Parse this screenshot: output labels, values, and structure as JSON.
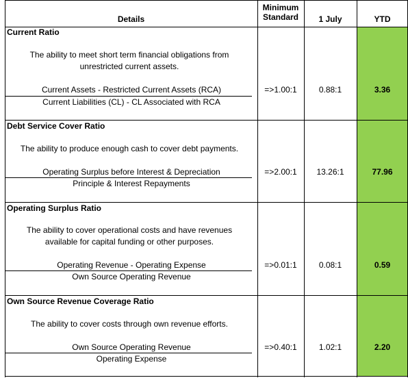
{
  "header": {
    "details": "Details",
    "min_line1": "Minimum",
    "min_line2": "Standard",
    "july": "1 July",
    "ytd": "YTD"
  },
  "ytd_color": "#92d050",
  "sections": [
    {
      "title": "Current Ratio",
      "desc1": "The ability to meet short term financial obligations from",
      "desc2": "unrestricted current assets.",
      "numerator": "Current Assets - Restricted Current Assets (RCA)",
      "denominator": "Current Liabilities (CL) - CL Associated with RCA",
      "minimum": "=>1.00:1",
      "july": "0.88:1",
      "ytd": "3.36"
    },
    {
      "title": "Debt Service Cover Ratio",
      "desc1": "The ability to produce enough cash to cover debt payments.",
      "numerator": "Operating Surplus before Interest & Depreciation",
      "denominator": "Principle & Interest Repayments",
      "minimum": "=>2.00:1",
      "july": "13.26:1",
      "ytd": "77.96"
    },
    {
      "title": "Operating Surplus Ratio",
      "desc1": "The ability to cover operational costs and have revenues",
      "desc2": "available for capital funding or other purposes.",
      "numerator": "Operating Revenue - Operating Expense",
      "denominator": "Own Source Operating Revenue",
      "minimum": "=>0.01:1",
      "july": "0.08:1",
      "ytd": "0.59"
    },
    {
      "title": "Own Source Revenue Coverage Ratio",
      "desc1": "The ability to cover costs through own revenue efforts.",
      "numerator": "Own Source Operating Revenue",
      "denominator": "Operating Expense",
      "minimum": "=>0.40:1",
      "july": "1.02:1",
      "ytd": "2.20"
    }
  ]
}
